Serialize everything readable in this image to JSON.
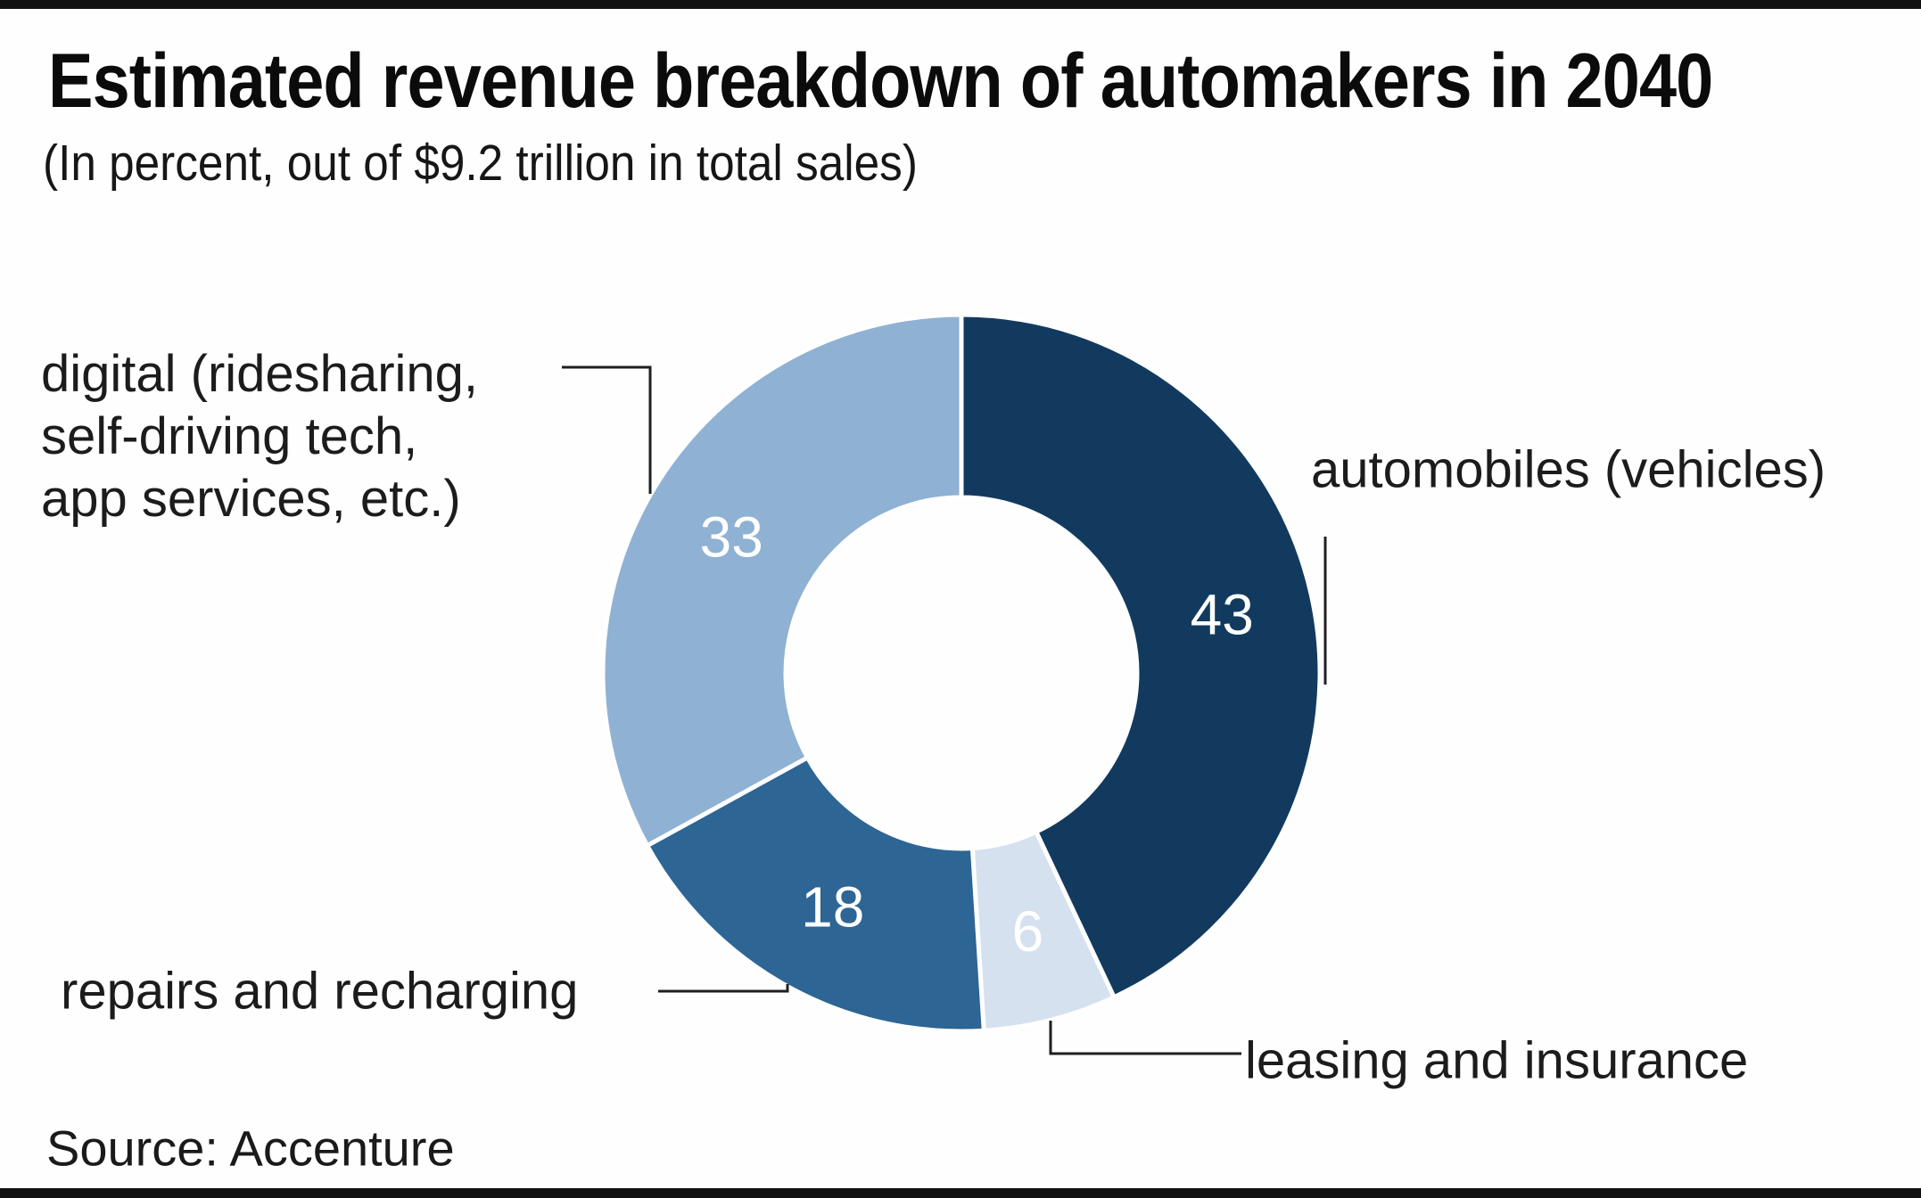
{
  "header": {
    "title": "Estimated revenue breakdown of automakers in 2040",
    "subtitle": "(In percent, out of $9.2 trillion in total sales)"
  },
  "source": {
    "label": "Source: Accenture"
  },
  "chart_data": {
    "type": "pie",
    "variant": "donut",
    "title": "Estimated revenue breakdown of automakers in 2040",
    "subtitle": "(In percent, out of $9.2 trillion in total sales)",
    "unit": "percent of $9.2 trillion total sales",
    "start_angle_deg": 0,
    "clockwise": true,
    "inner_radius_ratio": 0.49,
    "value_label_color": "#ffffff",
    "segments": [
      {
        "label": "automobiles (vehicles)",
        "value": 43,
        "color": "#123a5f"
      },
      {
        "label": "leasing and insurance",
        "value": 6,
        "color": "#d5e1ee"
      },
      {
        "label": "repairs and recharging",
        "value": 18,
        "color": "#2d6594"
      },
      {
        "label": "digital (ridesharing, self-driving tech, app services, etc.)",
        "value": 33,
        "color": "#8fb1d3"
      }
    ]
  },
  "annotations": {
    "digital_line1": "digital (ridesharing,",
    "digital_line2": "self-driving tech,",
    "digital_line3": "app services, etc.)",
    "automobiles_label": "automobiles (vehicles)",
    "leasing_label": "leasing and insurance",
    "repairs_label": "repairs and recharging"
  }
}
